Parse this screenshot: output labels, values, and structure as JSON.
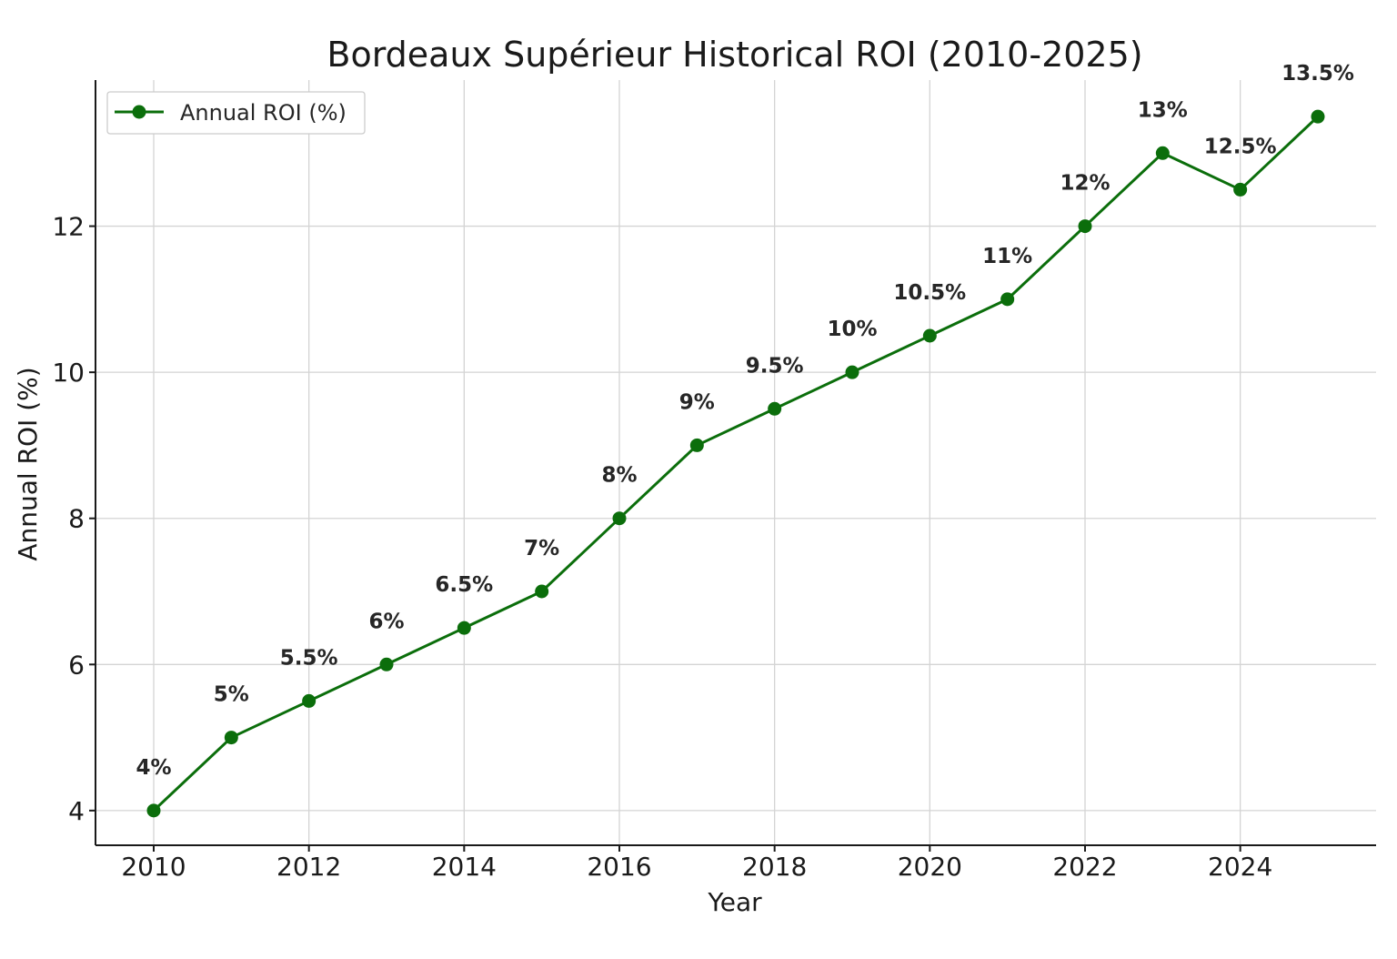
{
  "chart_data": {
    "type": "line",
    "title": "Bordeaux Supérieur Historical ROI (2010-2025)",
    "xlabel": "Year",
    "ylabel": "Annual ROI (%)",
    "x": [
      2010,
      2011,
      2012,
      2013,
      2014,
      2015,
      2016,
      2017,
      2018,
      2019,
      2020,
      2021,
      2022,
      2023,
      2024,
      2025
    ],
    "series": [
      {
        "name": "Annual ROI (%)",
        "values": [
          4,
          5,
          5.5,
          6,
          6.5,
          7,
          8,
          9,
          9.5,
          10,
          10.5,
          11,
          12,
          13,
          12.5,
          13.5
        ],
        "labels": [
          "4%",
          "5%",
          "5.5%",
          "6%",
          "6.5%",
          "7%",
          "8%",
          "9%",
          "9.5%",
          "10%",
          "10.5%",
          "11%",
          "12%",
          "13%",
          "12.5%",
          "13.5%"
        ],
        "color": "#0b6e0b"
      }
    ],
    "xticks": [
      2010,
      2012,
      2014,
      2016,
      2018,
      2020,
      2022,
      2024
    ],
    "yticks": [
      4,
      6,
      8,
      10,
      12
    ],
    "xlim": [
      2009.25,
      2025.75
    ],
    "ylim": [
      3.525,
      14.0
    ],
    "grid": true,
    "legend_position": "top-left"
  }
}
